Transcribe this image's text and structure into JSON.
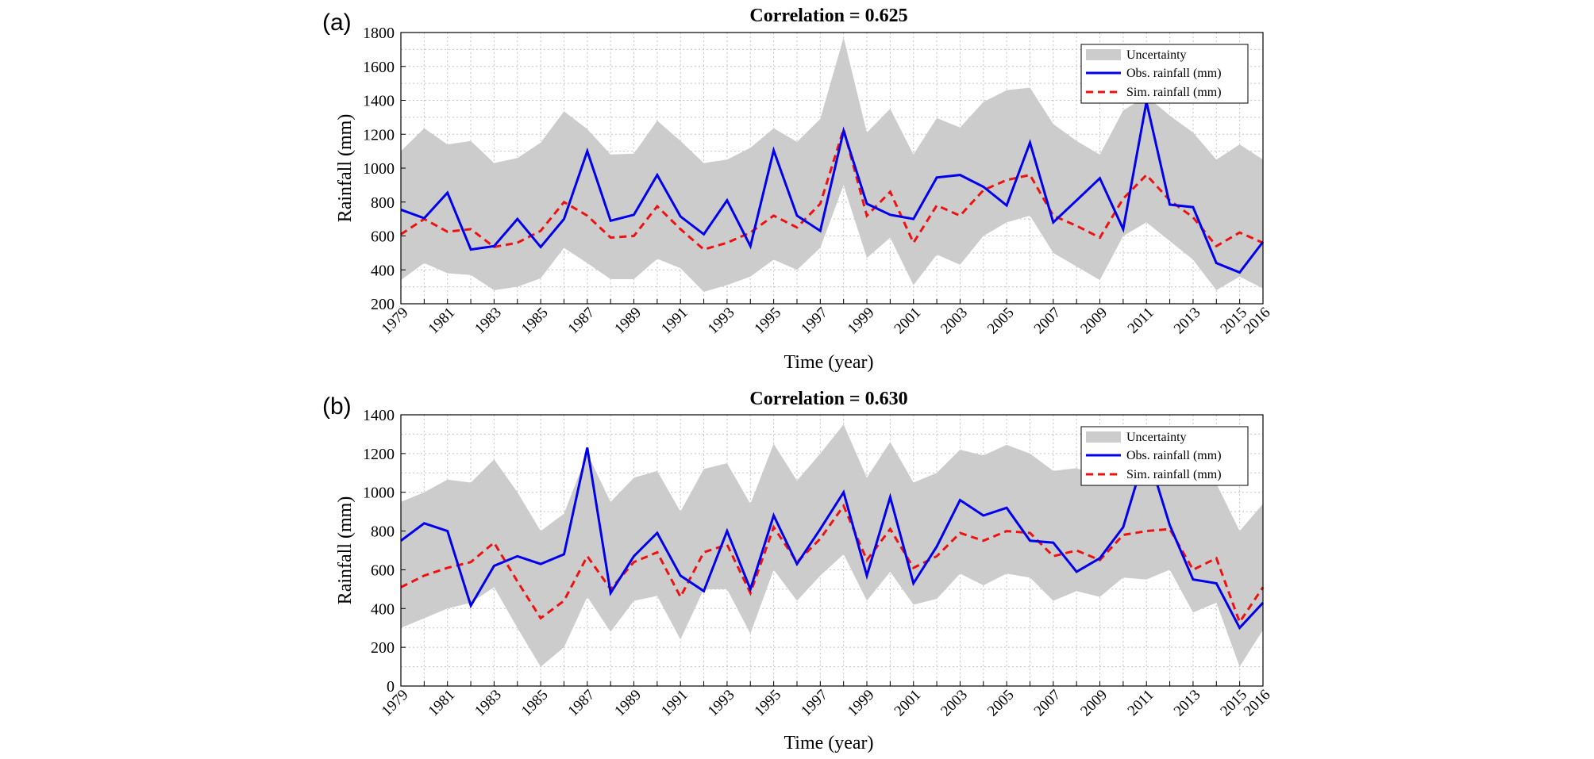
{
  "colors": {
    "band": "#cccccc",
    "obs": "#0000ee",
    "sim": "#ee1111",
    "grid": "#c4c4c4"
  },
  "chart_data": [
    {
      "type": "line",
      "panel_label": "(a)",
      "title": "Correlation = 0.625",
      "xlabel": "Time (year)",
      "ylabel": "Rainfall (mm)",
      "xlim": [
        1979,
        2016
      ],
      "ylim": [
        200,
        1800
      ],
      "yticks": [
        200,
        400,
        600,
        800,
        1000,
        1200,
        1400,
        1600,
        1800
      ],
      "xticks": [
        1979,
        1981,
        1983,
        1985,
        1987,
        1989,
        1991,
        1993,
        1995,
        1997,
        1999,
        2001,
        2003,
        2005,
        2007,
        2009,
        2011,
        2013,
        2015,
        2016
      ],
      "grid": true,
      "legend_position": "top-right",
      "x": [
        1979,
        1980,
        1981,
        1982,
        1983,
        1984,
        1985,
        1986,
        1987,
        1988,
        1989,
        1990,
        1991,
        1992,
        1993,
        1994,
        1995,
        1996,
        1997,
        1998,
        1999,
        2000,
        2001,
        2002,
        2003,
        2004,
        2005,
        2006,
        2007,
        2008,
        2009,
        2010,
        2011,
        2012,
        2013,
        2014,
        2015,
        2016
      ],
      "band": {
        "name": "Uncertainty",
        "upper": [
          1100,
          1235,
          1140,
          1160,
          1030,
          1060,
          1150,
          1335,
          1230,
          1080,
          1085,
          1280,
          1160,
          1030,
          1050,
          1120,
          1235,
          1155,
          1290,
          1770,
          1210,
          1350,
          1080,
          1295,
          1240,
          1390,
          1460,
          1475,
          1260,
          1160,
          1080,
          1340,
          1425,
          1310,
          1210,
          1050,
          1140,
          1050
        ],
        "lower": [
          340,
          440,
          380,
          370,
          280,
          300,
          350,
          530,
          440,
          345,
          345,
          465,
          410,
          270,
          310,
          360,
          460,
          400,
          530,
          900,
          470,
          590,
          310,
          490,
          430,
          600,
          680,
          720,
          500,
          420,
          340,
          600,
          680,
          570,
          460,
          280,
          360,
          290
        ]
      },
      "series": [
        {
          "name": "Obs. rainfall (mm)",
          "style": "solid",
          "values": [
            755,
            705,
            855,
            520,
            540,
            700,
            535,
            700,
            1100,
            690,
            725,
            960,
            715,
            610,
            810,
            540,
            1105,
            720,
            630,
            1220,
            790,
            725,
            700,
            945,
            960,
            890,
            780,
            1150,
            680,
            810,
            940,
            640,
            1390,
            785,
            770,
            440,
            385,
            565
          ]
        },
        {
          "name": "Sim. rainfall (mm)",
          "style": "dashed",
          "values": [
            610,
            700,
            625,
            640,
            535,
            560,
            630,
            800,
            720,
            590,
            600,
            775,
            640,
            520,
            560,
            620,
            720,
            650,
            790,
            1230,
            720,
            860,
            560,
            780,
            720,
            870,
            930,
            960,
            720,
            660,
            590,
            820,
            960,
            810,
            710,
            540,
            620,
            560
          ]
        }
      ]
    },
    {
      "type": "line",
      "panel_label": "(b)",
      "title": "Correlation = 0.630",
      "xlabel": "Time (year)",
      "ylabel": "Rainfall (mm)",
      "xlim": [
        1979,
        2016
      ],
      "ylim": [
        0,
        1400
      ],
      "yticks": [
        0,
        200,
        400,
        600,
        800,
        1000,
        1200,
        1400
      ],
      "xticks": [
        1979,
        1981,
        1983,
        1985,
        1987,
        1989,
        1991,
        1993,
        1995,
        1997,
        1999,
        2001,
        2003,
        2005,
        2007,
        2009,
        2011,
        2013,
        2015,
        2016
      ],
      "grid": true,
      "legend_position": "top-right",
      "x": [
        1979,
        1980,
        1981,
        1982,
        1983,
        1984,
        1985,
        1986,
        1987,
        1988,
        1989,
        1990,
        1991,
        1992,
        1993,
        1994,
        1995,
        1996,
        1997,
        1998,
        1999,
        2000,
        2001,
        2002,
        2003,
        2004,
        2005,
        2006,
        2007,
        2008,
        2009,
        2010,
        2011,
        2012,
        2013,
        2014,
        2015,
        2016
      ],
      "band": {
        "name": "Uncertainty",
        "upper": [
          950,
          1000,
          1065,
          1050,
          1170,
          1000,
          800,
          890,
          1200,
          950,
          1075,
          1110,
          900,
          1120,
          1150,
          940,
          1250,
          1060,
          1200,
          1350,
          1075,
          1260,
          1050,
          1100,
          1220,
          1190,
          1245,
          1200,
          1110,
          1125,
          1080,
          1160,
          1280,
          1260,
          1140,
          1045,
          800,
          940
        ],
        "lower": [
          300,
          350,
          400,
          430,
          510,
          300,
          100,
          200,
          460,
          280,
          440,
          465,
          240,
          500,
          500,
          270,
          600,
          440,
          570,
          680,
          440,
          590,
          420,
          450,
          580,
          520,
          580,
          560,
          440,
          490,
          460,
          560,
          550,
          600,
          380,
          430,
          100,
          290
        ]
      },
      "series": [
        {
          "name": "Obs. rainfall (mm)",
          "style": "solid",
          "values": [
            750,
            840,
            800,
            415,
            620,
            670,
            630,
            680,
            1230,
            480,
            670,
            790,
            570,
            490,
            800,
            500,
            880,
            630,
            810,
            1000,
            570,
            975,
            530,
            720,
            960,
            880,
            920,
            750,
            740,
            590,
            660,
            820,
            1220,
            830,
            550,
            530,
            300,
            430
          ]
        },
        {
          "name": "Sim. rainfall (mm)",
          "style": "dashed",
          "values": [
            510,
            570,
            610,
            640,
            740,
            540,
            350,
            440,
            670,
            500,
            640,
            690,
            460,
            690,
            730,
            480,
            820,
            640,
            760,
            930,
            650,
            810,
            610,
            670,
            790,
            750,
            800,
            790,
            670,
            700,
            650,
            780,
            800,
            810,
            600,
            660,
            330,
            510
          ]
        }
      ]
    }
  ]
}
